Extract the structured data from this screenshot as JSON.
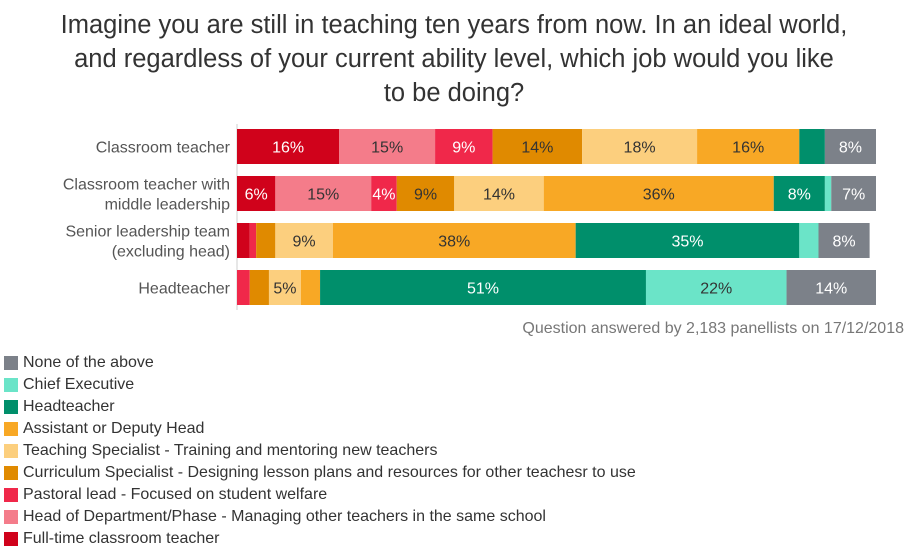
{
  "title_lines": [
    "Imagine you are still in teaching ten years from now. In an ideal world,",
    "and regardless of your current ability level, which job would you like",
    "to be doing?"
  ],
  "source_note": "Question answered by 2,183 panellists on 17/12/2018",
  "chart_data": {
    "type": "bar",
    "orientation": "horizontal",
    "stacked": true,
    "normalized_100": true,
    "categories": [
      [
        "Classroom teacher"
      ],
      [
        "Classroom teacher with",
        "middle leadership"
      ],
      [
        "Senior leadership team",
        "(excluding head)"
      ],
      [
        "Headteacher"
      ]
    ],
    "series": [
      {
        "name": "Full-time classroom teacher",
        "color": "#d0021b",
        "values": [
          16,
          6,
          2,
          0
        ]
      },
      {
        "name": "Head of Department/Phase - Managing other teachers in the same school",
        "color": "#f47c8a",
        "values": [
          15,
          15,
          0,
          0
        ]
      },
      {
        "name": "Pastoral lead - Focused on student welfare",
        "color": "#f0284a",
        "values": [
          9,
          4,
          1,
          2
        ]
      },
      {
        "name": "Curriculum Specialist - Designing lesson plans and resources for other teachesr to use",
        "color": "#e08a00",
        "values": [
          14,
          9,
          3,
          3
        ]
      },
      {
        "name": "Teaching Specialist - Training and mentoring new teachers",
        "color": "#fccf7e",
        "values": [
          18,
          14,
          9,
          5
        ]
      },
      {
        "name": "Assistant or Deputy Head",
        "color": "#f8a825",
        "values": [
          16,
          36,
          38,
          3
        ]
      },
      {
        "name": "Headteacher",
        "color": "#008f6b",
        "values": [
          4,
          8,
          35,
          51
        ]
      },
      {
        "name": "Chief Executive",
        "color": "#6be4c8",
        "values": [
          0,
          1,
          3,
          22
        ]
      },
      {
        "name": "None of the above",
        "color": "#7c8189",
        "values": [
          8,
          7,
          8,
          14
        ]
      }
    ],
    "data_labels": [
      [
        "16%",
        "15%",
        "9%",
        "14%",
        "18%",
        "16%",
        "",
        "",
        "8%"
      ],
      [
        "6%",
        "15%",
        "4%",
        "9%",
        "14%",
        "36%",
        "8%",
        "",
        "7%"
      ],
      [
        "",
        "",
        "",
        "",
        "9%",
        "38%",
        "35%",
        "",
        "8%"
      ],
      [
        "",
        "",
        "",
        "",
        "5%",
        "",
        "51%",
        "22%",
        "14%"
      ]
    ],
    "legend_order": [
      "None of the above",
      "Chief Executive",
      "Headteacher",
      "Assistant or Deputy Head",
      "Teaching Specialist - Training and mentoring new teachers",
      "Curriculum Specialist - Designing lesson plans and resources for other teachesr to use",
      "Pastoral lead - Focused on student welfare",
      "Head of Department/Phase - Managing other teachers in the same school",
      "Full-time classroom teacher"
    ],
    "legend_position": "bottom-left",
    "xlim": [
      0,
      100
    ],
    "grid": false
  }
}
